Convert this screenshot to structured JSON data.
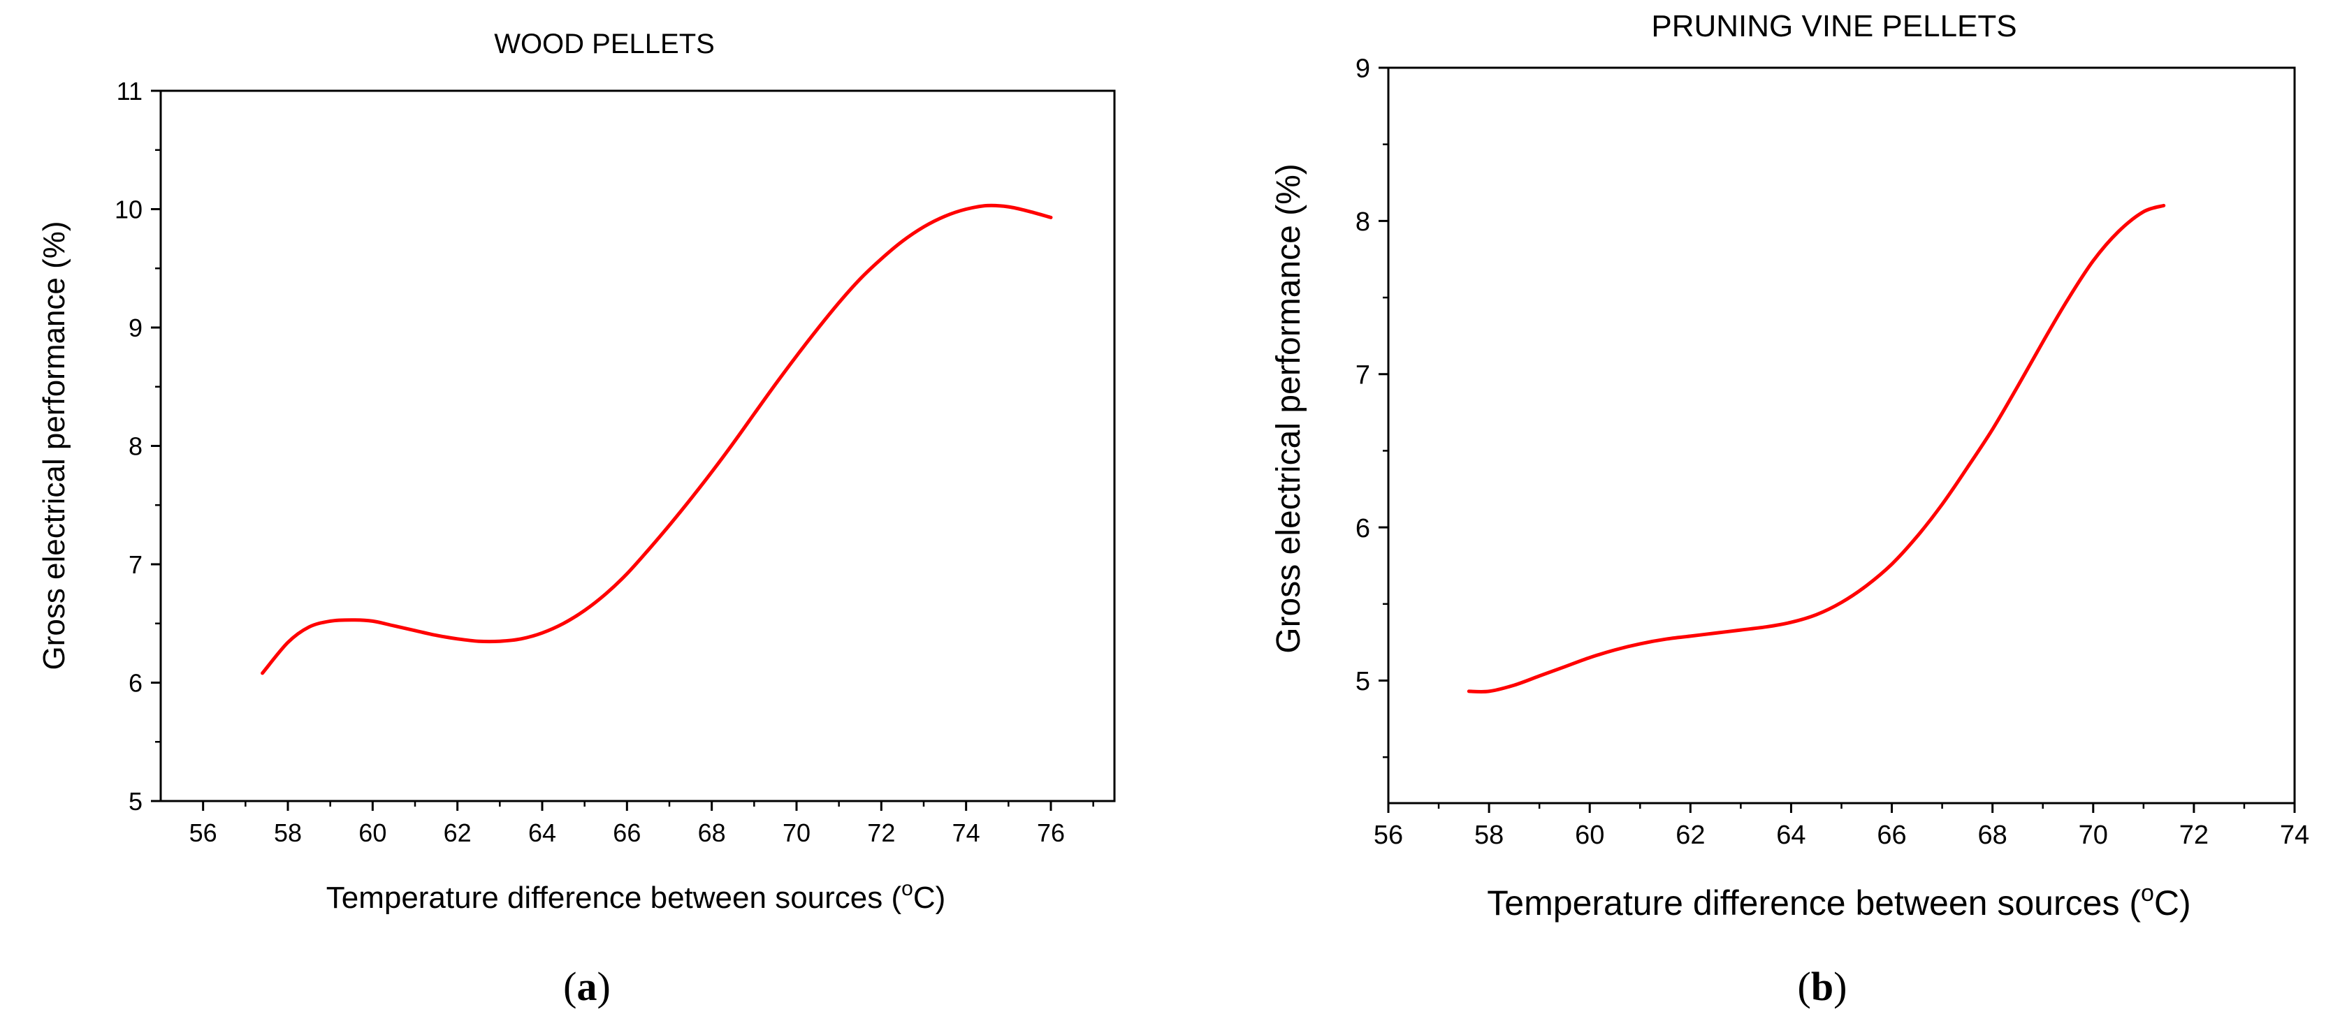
{
  "chart_data": [
    {
      "type": "line",
      "panel_label": "(a)",
      "panel_letter": "a",
      "title": "WOOD PELLETS",
      "xlabel": "Temperature difference between sources (",
      "xlabel_unit_sup": "o",
      "xlabel_unit_end": "C)",
      "ylabel": "Gross electrical performance (%)",
      "xlim": [
        55,
        77.5
      ],
      "ylim": [
        5,
        11
      ],
      "x_ticks": [
        56,
        58,
        60,
        62,
        64,
        66,
        68,
        70,
        72,
        74,
        76
      ],
      "y_ticks": [
        5,
        6,
        7,
        8,
        9,
        10,
        11
      ],
      "grid": false,
      "line_color": "#ff0000",
      "series": [
        {
          "name": "Wood pellets",
          "x": [
            57.4,
            58.0,
            58.5,
            59.0,
            59.5,
            60.0,
            60.5,
            61.0,
            61.5,
            62.0,
            62.5,
            63.0,
            63.5,
            64.0,
            64.5,
            65.0,
            65.5,
            66.0,
            66.5,
            67.0,
            67.5,
            68.0,
            68.5,
            69.0,
            69.5,
            70.0,
            70.5,
            71.0,
            71.5,
            72.0,
            72.5,
            73.0,
            73.5,
            74.0,
            74.5,
            75.0,
            75.5,
            76.0
          ],
          "y": [
            6.08,
            6.34,
            6.47,
            6.52,
            6.53,
            6.52,
            6.48,
            6.44,
            6.4,
            6.37,
            6.35,
            6.35,
            6.37,
            6.42,
            6.5,
            6.61,
            6.75,
            6.92,
            7.12,
            7.33,
            7.55,
            7.78,
            8.02,
            8.27,
            8.52,
            8.76,
            8.99,
            9.21,
            9.41,
            9.58,
            9.73,
            9.85,
            9.94,
            10.0,
            10.03,
            10.02,
            9.98,
            9.93
          ]
        }
      ]
    },
    {
      "type": "line",
      "panel_label": "(b)",
      "panel_letter": "b",
      "title": "PRUNING VINE PELLETS",
      "xlabel": "Temperature difference between sources (",
      "xlabel_unit_sup": "o",
      "xlabel_unit_end": "C)",
      "ylabel": "Gross electrical performance (%)",
      "xlim": [
        56,
        74
      ],
      "ylim": [
        4.2,
        9
      ],
      "x_ticks": [
        56,
        58,
        60,
        62,
        64,
        66,
        68,
        70,
        72,
        74
      ],
      "y_ticks": [
        5,
        6,
        7,
        8,
        9
      ],
      "grid": false,
      "line_color": "#ff0000",
      "series": [
        {
          "name": "Pruning vine pellets",
          "x": [
            57.6,
            58.0,
            58.5,
            59.0,
            59.5,
            60.0,
            60.5,
            61.0,
            61.5,
            62.0,
            62.5,
            63.0,
            63.5,
            64.0,
            64.5,
            65.0,
            65.5,
            66.0,
            66.5,
            67.0,
            67.5,
            68.0,
            68.5,
            69.0,
            69.5,
            70.0,
            70.5,
            71.0,
            71.4
          ],
          "y": [
            4.93,
            4.93,
            4.97,
            5.03,
            5.09,
            5.15,
            5.2,
            5.24,
            5.27,
            5.29,
            5.31,
            5.33,
            5.35,
            5.38,
            5.43,
            5.51,
            5.62,
            5.76,
            5.94,
            6.15,
            6.39,
            6.64,
            6.92,
            7.21,
            7.49,
            7.74,
            7.93,
            8.06,
            8.1
          ]
        }
      ]
    }
  ]
}
